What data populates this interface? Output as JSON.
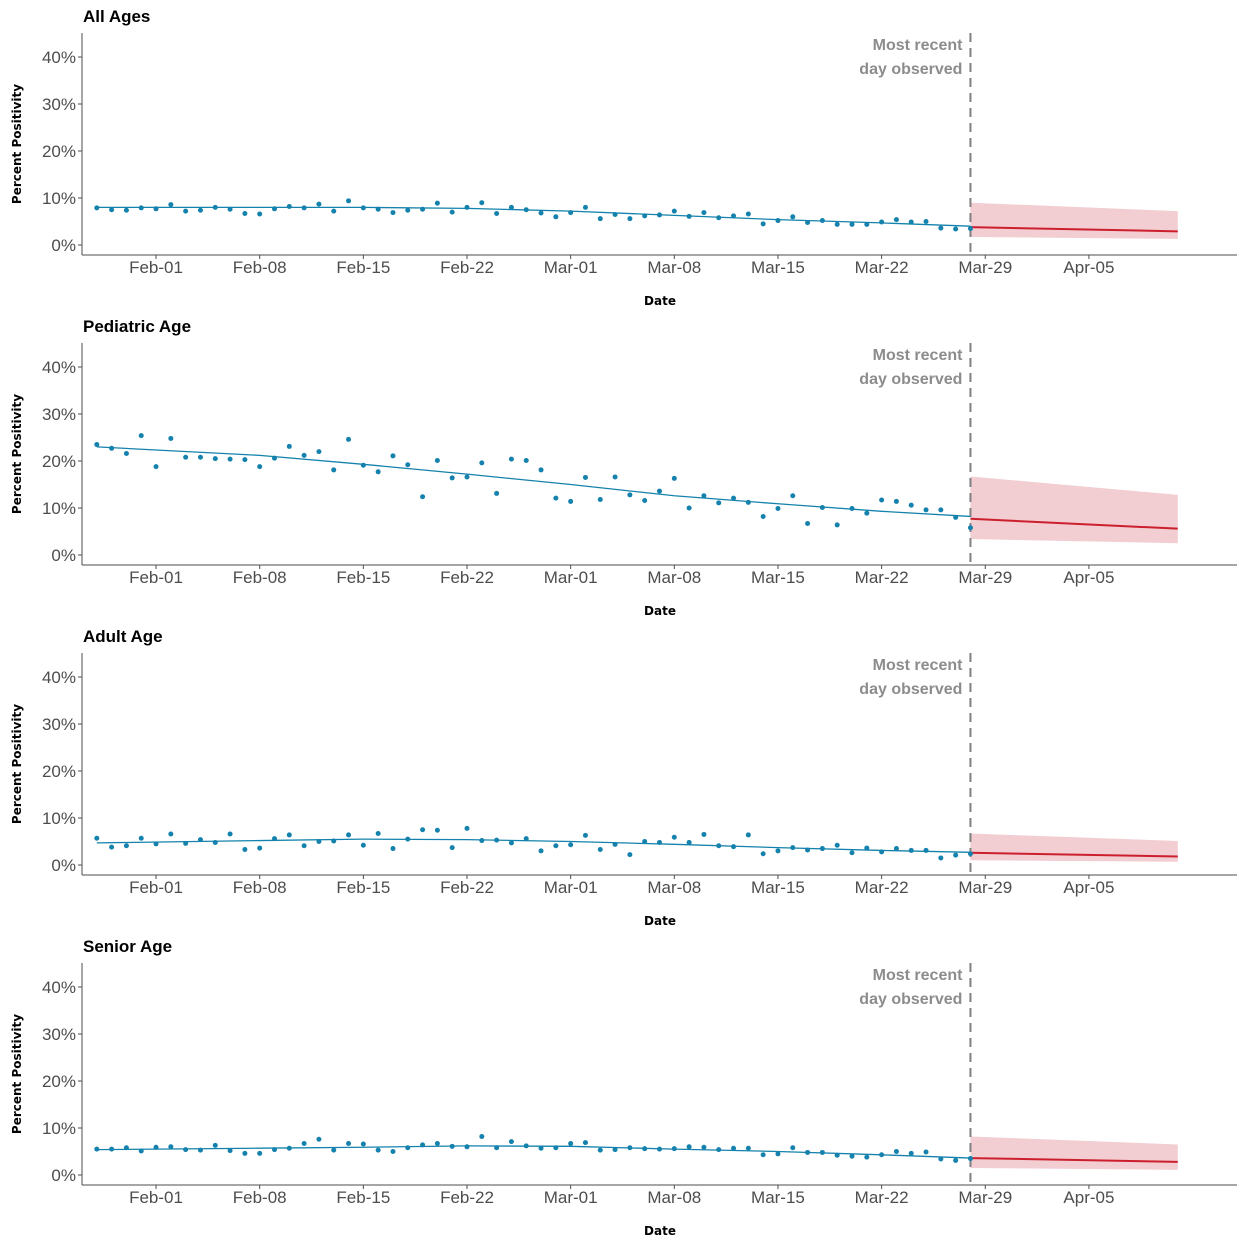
{
  "colors": {
    "observed": "#1482ac",
    "forecast_line": "#cc1f2e",
    "forecast_band": "#f2cdd1",
    "reference_line": "#808080",
    "axis": "#4d4d4d"
  },
  "chart_data": [
    {
      "type": "scatter",
      "title": "All Ages",
      "xlabel": "Date",
      "ylabel": "Percent Positivity",
      "x_ticks": [
        "Feb-01",
        "Feb-08",
        "Feb-15",
        "Feb-22",
        "Mar-01",
        "Mar-08",
        "Mar-15",
        "Mar-22",
        "Mar-29",
        "Apr-05"
      ],
      "y_ticks": [
        "0%",
        "10%",
        "20%",
        "30%",
        "40%"
      ],
      "ylim": [
        0,
        0.45
      ],
      "xlim": [
        "2021-01-27",
        "2021-04-15"
      ],
      "grid": false,
      "reference_line": {
        "date": "2021-03-28",
        "label": [
          "Most recent",
          "day observed"
        ]
      },
      "observed_points": {
        "start_date": "2021-01-28",
        "values": [
          0.079,
          0.075,
          0.074,
          0.079,
          0.077,
          0.086,
          0.072,
          0.074,
          0.08,
          0.076,
          0.067,
          0.066,
          0.077,
          0.082,
          0.079,
          0.087,
          0.072,
          0.094,
          0.079,
          0.076,
          0.069,
          0.074,
          0.076,
          0.089,
          0.07,
          0.08,
          0.09,
          0.067,
          0.08,
          0.075,
          0.068,
          0.06,
          0.069,
          0.08,
          0.056,
          0.065,
          0.056,
          0.062,
          0.064,
          0.072,
          0.061,
          0.069,
          0.058,
          0.062,
          0.066,
          0.045,
          0.052,
          0.06,
          0.048,
          0.052,
          0.044,
          0.044,
          0.044,
          0.049,
          0.054,
          0.049,
          0.05,
          0.036,
          0.034,
          0.035
        ]
      },
      "trend": {
        "dates": [
          "2021-01-28",
          "2021-02-15",
          "2021-02-22",
          "2021-03-01",
          "2021-03-08",
          "2021-03-15",
          "2021-03-22",
          "2021-03-28"
        ],
        "values": [
          0.08,
          0.08,
          0.078,
          0.072,
          0.063,
          0.054,
          0.047,
          0.04
        ]
      },
      "forecast": {
        "dates": [
          "2021-03-28",
          "2021-04-11"
        ],
        "mean": [
          0.038,
          0.029
        ],
        "lower": [
          0.017,
          0.013
        ],
        "upper": [
          0.09,
          0.072
        ]
      }
    },
    {
      "type": "scatter",
      "title": "Pediatric Age",
      "xlabel": "Date",
      "ylabel": "Percent Positivity",
      "x_ticks": [
        "Feb-01",
        "Feb-08",
        "Feb-15",
        "Feb-22",
        "Mar-01",
        "Mar-08",
        "Mar-15",
        "Mar-22",
        "Mar-29",
        "Apr-05"
      ],
      "y_ticks": [
        "0%",
        "10%",
        "20%",
        "30%",
        "40%"
      ],
      "ylim": [
        0,
        0.45
      ],
      "xlim": [
        "2021-01-27",
        "2021-04-15"
      ],
      "grid": false,
      "reference_line": {
        "date": "2021-03-28",
        "label": [
          "Most recent",
          "day observed"
        ]
      },
      "observed_points": {
        "start_date": "2021-01-28",
        "values": [
          0.235,
          0.227,
          0.216,
          0.254,
          0.188,
          0.248,
          0.208,
          0.208,
          0.205,
          0.204,
          0.203,
          0.188,
          0.206,
          0.231,
          0.212,
          0.22,
          0.181,
          0.246,
          0.191,
          0.177,
          0.211,
          0.192,
          0.124,
          0.201,
          0.164,
          0.166,
          0.196,
          0.131,
          0.204,
          0.201,
          0.181,
          0.121,
          0.114,
          0.165,
          0.118,
          0.166,
          0.128,
          0.116,
          0.136,
          0.163,
          0.1,
          0.126,
          0.111,
          0.121,
          0.112,
          0.082,
          0.099,
          0.126,
          0.067,
          0.101,
          0.064,
          0.099,
          0.089,
          0.117,
          0.114,
          0.106,
          0.096,
          0.096,
          0.08,
          0.058
        ]
      },
      "trend": {
        "dates": [
          "2021-01-28",
          "2021-02-08",
          "2021-02-15",
          "2021-02-22",
          "2021-03-01",
          "2021-03-08",
          "2021-03-15",
          "2021-03-22",
          "2021-03-28"
        ],
        "values": [
          0.23,
          0.212,
          0.193,
          0.172,
          0.15,
          0.126,
          0.109,
          0.093,
          0.082
        ]
      },
      "forecast": {
        "dates": [
          "2021-03-28",
          "2021-04-11"
        ],
        "mean": [
          0.077,
          0.056
        ],
        "lower": [
          0.034,
          0.025
        ],
        "upper": [
          0.167,
          0.128
        ]
      }
    },
    {
      "type": "scatter",
      "title": "Adult Age",
      "xlabel": "Date",
      "ylabel": "Percent Positivity",
      "x_ticks": [
        "Feb-01",
        "Feb-08",
        "Feb-15",
        "Feb-22",
        "Mar-01",
        "Mar-08",
        "Mar-15",
        "Mar-22",
        "Mar-29",
        "Apr-05"
      ],
      "y_ticks": [
        "0%",
        "10%",
        "20%",
        "30%",
        "40%"
      ],
      "ylim": [
        0,
        0.45
      ],
      "xlim": [
        "2021-01-27",
        "2021-04-15"
      ],
      "grid": false,
      "reference_line": {
        "date": "2021-03-28",
        "label": [
          "Most recent",
          "day observed"
        ]
      },
      "observed_points": {
        "start_date": "2021-01-28",
        "values": [
          0.057,
          0.038,
          0.041,
          0.057,
          0.045,
          0.066,
          0.046,
          0.054,
          0.048,
          0.066,
          0.033,
          0.036,
          0.056,
          0.064,
          0.041,
          0.05,
          0.051,
          0.064,
          0.042,
          0.067,
          0.035,
          0.055,
          0.075,
          0.074,
          0.037,
          0.078,
          0.052,
          0.053,
          0.047,
          0.056,
          0.03,
          0.041,
          0.043,
          0.063,
          0.033,
          0.044,
          0.022,
          0.05,
          0.048,
          0.059,
          0.048,
          0.065,
          0.041,
          0.039,
          0.064,
          0.024,
          0.03,
          0.037,
          0.032,
          0.035,
          0.042,
          0.026,
          0.036,
          0.028,
          0.035,
          0.031,
          0.031,
          0.015,
          0.021,
          0.024
        ]
      },
      "trend": {
        "dates": [
          "2021-01-28",
          "2021-02-08",
          "2021-02-15",
          "2021-02-22",
          "2021-03-01",
          "2021-03-08",
          "2021-03-15",
          "2021-03-22",
          "2021-03-28"
        ],
        "values": [
          0.047,
          0.052,
          0.055,
          0.054,
          0.05,
          0.044,
          0.037,
          0.031,
          0.027
        ]
      },
      "forecast": {
        "dates": [
          "2021-03-28",
          "2021-04-11"
        ],
        "mean": [
          0.026,
          0.018
        ],
        "lower": [
          0.01,
          0.007
        ],
        "upper": [
          0.067,
          0.051
        ]
      }
    },
    {
      "type": "scatter",
      "title": "Senior Age",
      "xlabel": "Date",
      "ylabel": "Percent Positivity",
      "x_ticks": [
        "Feb-01",
        "Feb-08",
        "Feb-15",
        "Feb-22",
        "Mar-01",
        "Mar-08",
        "Mar-15",
        "Mar-22",
        "Mar-29",
        "Apr-05"
      ],
      "y_ticks": [
        "0%",
        "10%",
        "20%",
        "30%",
        "40%"
      ],
      "ylim": [
        0,
        0.45
      ],
      "xlim": [
        "2021-01-27",
        "2021-04-15"
      ],
      "grid": false,
      "reference_line": {
        "date": "2021-03-28",
        "label": [
          "Most recent",
          "day observed"
        ]
      },
      "observed_points": {
        "start_date": "2021-01-28",
        "values": [
          0.055,
          0.055,
          0.058,
          0.051,
          0.059,
          0.06,
          0.054,
          0.053,
          0.063,
          0.052,
          0.046,
          0.046,
          0.054,
          0.057,
          0.067,
          0.076,
          0.053,
          0.067,
          0.066,
          0.053,
          0.05,
          0.058,
          0.064,
          0.067,
          0.061,
          0.06,
          0.082,
          0.058,
          0.071,
          0.062,
          0.057,
          0.058,
          0.067,
          0.069,
          0.053,
          0.054,
          0.058,
          0.056,
          0.055,
          0.056,
          0.06,
          0.059,
          0.054,
          0.057,
          0.057,
          0.043,
          0.045,
          0.058,
          0.048,
          0.048,
          0.042,
          0.04,
          0.038,
          0.043,
          0.05,
          0.046,
          0.049,
          0.034,
          0.031,
          0.035
        ]
      },
      "trend": {
        "dates": [
          "2021-01-28",
          "2021-02-08",
          "2021-02-15",
          "2021-02-22",
          "2021-03-01",
          "2021-03-08",
          "2021-03-15",
          "2021-03-22",
          "2021-03-28"
        ],
        "values": [
          0.054,
          0.057,
          0.059,
          0.062,
          0.061,
          0.055,
          0.05,
          0.043,
          0.036
        ]
      },
      "forecast": {
        "dates": [
          "2021-03-28",
          "2021-04-11"
        ],
        "mean": [
          0.036,
          0.028
        ],
        "lower": [
          0.015,
          0.011
        ],
        "upper": [
          0.082,
          0.065
        ]
      }
    }
  ]
}
